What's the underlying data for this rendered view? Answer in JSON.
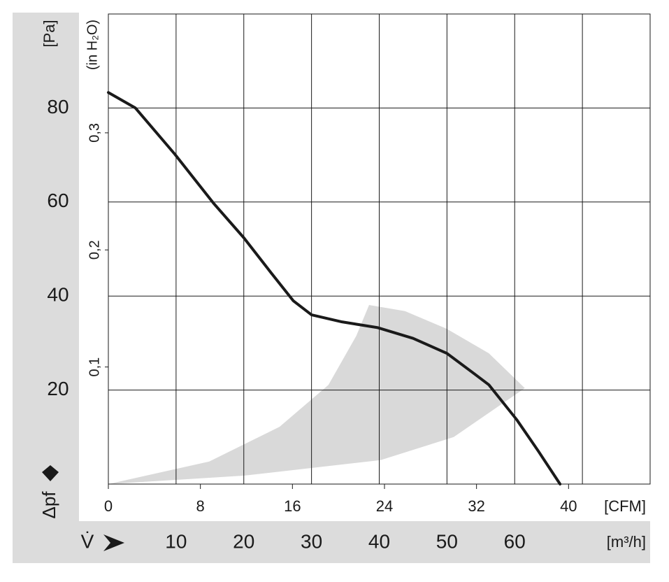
{
  "chart_data": {
    "type": "line",
    "x_label": "V̇",
    "y_label": "Δpf",
    "y_unit": "[Pa]",
    "y2_unit": "(in H₂O)",
    "x_unit": "[m³/h]",
    "x2_unit": "[CFM]",
    "xlim": [
      0,
      80
    ],
    "xticks": [
      10,
      20,
      30,
      40,
      50,
      60
    ],
    "xgrid": [
      10,
      20,
      30,
      40,
      50,
      60,
      70
    ],
    "x2lim": [
      0,
      47.09
    ],
    "x2ticks": [
      0,
      8,
      16,
      24,
      32,
      40
    ],
    "ylim": [
      0,
      100
    ],
    "yticks": [
      20,
      40,
      60,
      80
    ],
    "y2lim": [
      0,
      0.4015
    ],
    "y2ticks": [
      {
        "value": 0.1,
        "label": "0,1"
      },
      {
        "value": 0.2,
        "label": "0,2"
      },
      {
        "value": 0.3,
        "label": "0,3"
      }
    ],
    "grid": true,
    "series": [
      {
        "color": "#1a1a1a",
        "x": [
          0,
          4,
          9.8,
          15.5,
          20,
          24,
          27.3,
          30,
          34.5,
          39.7,
          45,
          50,
          54,
          56.2,
          60.3,
          63.5,
          66.7
        ],
        "values": [
          83.3,
          80,
          70.2,
          59.8,
          52.4,
          45,
          39,
          36,
          34.5,
          33.3,
          31,
          27.8,
          23.5,
          21.1,
          13.7,
          7,
          0
        ]
      }
    ],
    "operating_region": {
      "color": "#d9d9d9",
      "x": [
        0,
        20.1,
        40.2,
        51,
        61.5,
        56.2,
        50,
        43.8,
        38.5,
        36.6,
        32.5,
        25.3,
        14.9
      ],
      "values": [
        0,
        1.8,
        5.1,
        10,
        20.4,
        27.8,
        33,
        36.8,
        38.1,
        31.5,
        21.1,
        12.2,
        4.8
      ]
    }
  }
}
